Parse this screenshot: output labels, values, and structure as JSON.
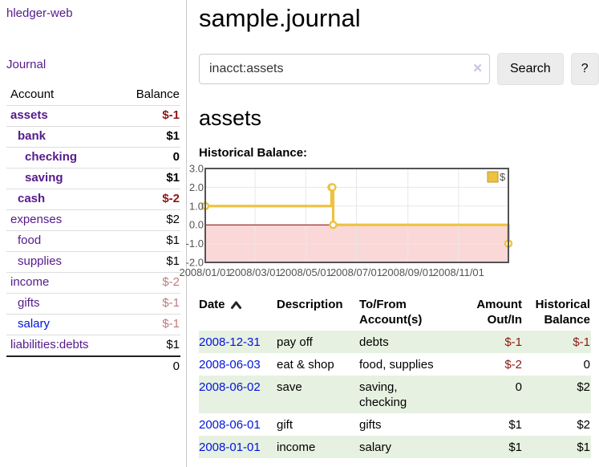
{
  "app": {
    "brand": "hledger-web",
    "nav_journal": "Journal"
  },
  "sidebar": {
    "accounts_header": {
      "account": "Account",
      "balance": "Balance"
    },
    "accounts": [
      {
        "name": "assets",
        "depth": 0,
        "bold": true,
        "balance": "$-1",
        "balance_style": "neg-strong",
        "link_style": "purple"
      },
      {
        "name": "bank",
        "depth": 1,
        "bold": true,
        "balance": "$1",
        "balance_style": "pos",
        "link_style": "purple"
      },
      {
        "name": "checking",
        "depth": 2,
        "bold": true,
        "balance": "0",
        "balance_style": "pos",
        "link_style": "purple"
      },
      {
        "name": "saving",
        "depth": 2,
        "bold": true,
        "balance": "$1",
        "balance_style": "pos",
        "link_style": "purple"
      },
      {
        "name": "cash",
        "depth": 1,
        "bold": true,
        "balance": "$-2",
        "balance_style": "neg-strong",
        "link_style": "purple"
      },
      {
        "name": "expenses",
        "depth": 0,
        "bold": false,
        "balance": "$2",
        "balance_style": "pos",
        "link_style": "purple"
      },
      {
        "name": "food",
        "depth": 1,
        "bold": false,
        "balance": "$1",
        "balance_style": "pos",
        "link_style": "purple"
      },
      {
        "name": "supplies",
        "depth": 1,
        "bold": false,
        "balance": "$1",
        "balance_style": "pos",
        "link_style": "purple"
      },
      {
        "name": "income",
        "depth": 0,
        "bold": false,
        "balance": "$-2",
        "balance_style": "neg-soft",
        "link_style": "purple"
      },
      {
        "name": "gifts",
        "depth": 1,
        "bold": false,
        "balance": "$-1",
        "balance_style": "neg-soft",
        "link_style": "purple"
      },
      {
        "name": "salary",
        "depth": 1,
        "bold": false,
        "balance": "$-1",
        "balance_style": "neg-soft",
        "link_style": "blue"
      },
      {
        "name": "liabilities:debts",
        "depth": 0,
        "bold": false,
        "balance": "$1",
        "balance_style": "pos",
        "link_style": "purple"
      }
    ],
    "total": "0"
  },
  "header": {
    "title": "sample.journal"
  },
  "search": {
    "value": "inacct:assets",
    "clear_icon": "✕",
    "button": "Search",
    "help_button": "?"
  },
  "account_page": {
    "heading": "assets",
    "chart_label": "Historical Balance:"
  },
  "chart_data": {
    "type": "line",
    "style": "step",
    "title": "Historical Balance",
    "xlim": [
      "2008-01-01",
      "2008-12-31"
    ],
    "ylim": [
      -2,
      3
    ],
    "yticks": [
      {
        "label": "3.0",
        "value": 3
      },
      {
        "label": "2.0",
        "value": 2
      },
      {
        "label": "1.0",
        "value": 1
      },
      {
        "label": "0.0",
        "value": 0
      },
      {
        "label": "-1.0",
        "value": -1
      },
      {
        "label": "-2.0",
        "value": -2
      }
    ],
    "xticks": [
      {
        "label": "2008/01/01",
        "date": "2008-01-01"
      },
      {
        "label": "2008/03/01",
        "date": "2008-03-01"
      },
      {
        "label": "2008/05/01",
        "date": "2008-05-01"
      },
      {
        "label": "2008/07/01",
        "date": "2008-07-01"
      },
      {
        "label": "2008/09/01",
        "date": "2008-09-01"
      },
      {
        "label": "2008/11/01",
        "date": "2008-11-01"
      }
    ],
    "series": [
      {
        "name": "$",
        "color": "#edc240",
        "points": [
          [
            "2008-01-01",
            1
          ],
          [
            "2008-06-01",
            2
          ],
          [
            "2008-06-02",
            2
          ],
          [
            "2008-06-03",
            0
          ],
          [
            "2008-12-31",
            -1
          ]
        ]
      }
    ],
    "legend": {
      "label": "$",
      "position": "top-right"
    },
    "grid": true,
    "negative_region_color": "#fbd8d8",
    "zero_line_color": "#8b0000",
    "frame_color": "#545454",
    "gridline_color": "#e7e7e7"
  },
  "register": {
    "columns": [
      {
        "line1": "Date",
        "line2": "",
        "align": "left",
        "sortable": true
      },
      {
        "line1": "Description",
        "line2": "",
        "align": "left"
      },
      {
        "line1": "To/From",
        "line2": "Account(s)",
        "align": "left"
      },
      {
        "line1": "Amount",
        "line2": "Out/In",
        "align": "right"
      },
      {
        "line1": "Historical",
        "line2": "Balance",
        "align": "right"
      }
    ],
    "rows": [
      {
        "date": "2008-12-31",
        "description": "pay off",
        "accounts": "debts",
        "amount": "$-1",
        "amount_neg": true,
        "balance": "$-1",
        "balance_neg": true
      },
      {
        "date": "2008-06-03",
        "description": "eat & shop",
        "accounts": "food, supplies",
        "amount": "$-2",
        "amount_neg": true,
        "balance": "0",
        "balance_neg": false
      },
      {
        "date": "2008-06-02",
        "description": "save",
        "accounts": "saving, checking",
        "amount": "0",
        "amount_neg": false,
        "balance": "$2",
        "balance_neg": false
      },
      {
        "date": "2008-06-01",
        "description": "gift",
        "accounts": "gifts",
        "amount": "$1",
        "amount_neg": false,
        "balance": "$2",
        "balance_neg": false
      },
      {
        "date": "2008-01-01",
        "description": "income",
        "accounts": "salary",
        "amount": "$1",
        "amount_neg": false,
        "balance": "$1",
        "balance_neg": false
      }
    ]
  },
  "colors": {
    "link_purple": "#551a8b",
    "link_blue": "#0014dc",
    "negative_strong": "#8e1616",
    "negative_soft": "#bd7b7b",
    "row_stripe_green": "#e7f1e1",
    "series_yellow": "#edc240"
  }
}
